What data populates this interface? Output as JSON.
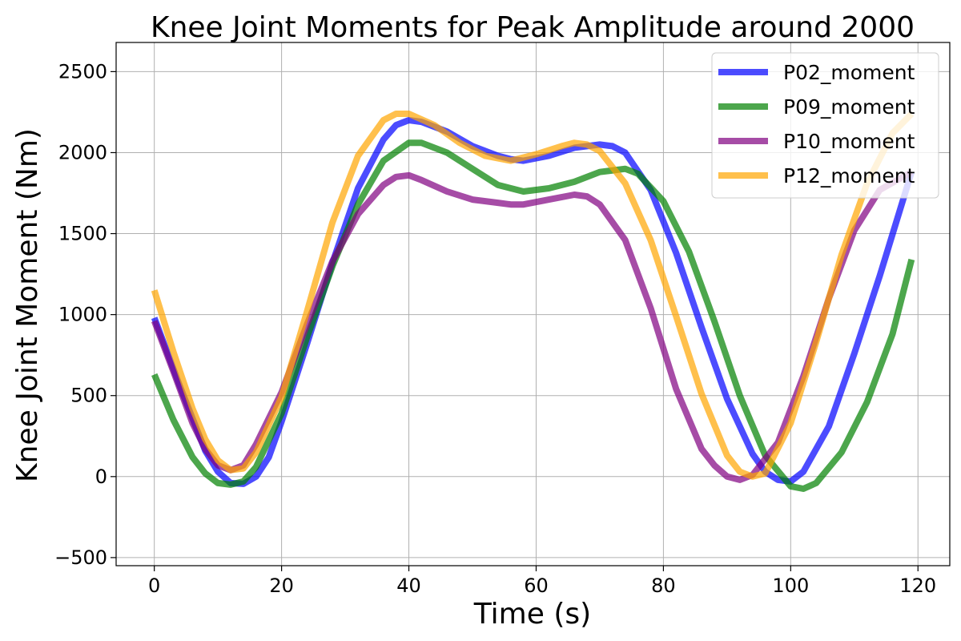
{
  "chart_data": {
    "type": "line",
    "title": "Knee Joint Moments for Peak Amplitude around 2000",
    "xlabel": "Time (s)",
    "ylabel": "Knee Joint Moment (Nm)",
    "xlim": [
      -6,
      125
    ],
    "ylim": [
      -550,
      2680
    ],
    "xticks": [
      0,
      20,
      40,
      60,
      80,
      100,
      120
    ],
    "yticks": [
      -500,
      0,
      500,
      1000,
      1500,
      2000,
      2500
    ],
    "ytick_labels": [
      "−500",
      "0",
      "500",
      "1000",
      "1500",
      "2000",
      "2500"
    ],
    "grid": true,
    "legend_position": "top-right",
    "series": [
      {
        "name": "P02_moment",
        "color": "#0000ff",
        "x": [
          0,
          4,
          8,
          10,
          12,
          14,
          16,
          18,
          20,
          24,
          28,
          32,
          36,
          38,
          40,
          42,
          46,
          50,
          54,
          56,
          58,
          62,
          66,
          70,
          72,
          74,
          78,
          82,
          86,
          90,
          94,
          96,
          98,
          100,
          102,
          106,
          110,
          114,
          119
        ],
        "values": [
          980,
          560,
          160,
          30,
          -40,
          -45,
          0,
          120,
          340,
          820,
          1320,
          1780,
          2080,
          2170,
          2200,
          2190,
          2130,
          2040,
          1980,
          1960,
          1950,
          1980,
          2030,
          2050,
          2040,
          2000,
          1770,
          1380,
          920,
          480,
          140,
          30,
          -20,
          -30,
          30,
          310,
          760,
          1240,
          1880
        ]
      },
      {
        "name": "P09_moment",
        "color": "#008000",
        "x": [
          0,
          3,
          6,
          8,
          10,
          12,
          14,
          16,
          20,
          24,
          28,
          32,
          36,
          40,
          42,
          46,
          50,
          54,
          58,
          60,
          62,
          66,
          70,
          74,
          76,
          80,
          84,
          88,
          92,
          96,
          100,
          102,
          104,
          108,
          112,
          116,
          119
        ],
        "values": [
          630,
          350,
          120,
          20,
          -40,
          -50,
          -30,
          60,
          390,
          860,
          1300,
          1680,
          1950,
          2060,
          2060,
          2000,
          1900,
          1800,
          1760,
          1770,
          1780,
          1820,
          1880,
          1900,
          1870,
          1700,
          1390,
          960,
          500,
          130,
          -60,
          -75,
          -40,
          150,
          460,
          880,
          1340
        ]
      },
      {
        "name": "P10_moment",
        "color": "#800080",
        "x": [
          0,
          3,
          6,
          8,
          10,
          12,
          14,
          16,
          20,
          24,
          28,
          32,
          36,
          38,
          40,
          42,
          46,
          50,
          54,
          56,
          58,
          62,
          66,
          68,
          70,
          74,
          78,
          82,
          86,
          88,
          90,
          92,
          94,
          98,
          102,
          106,
          110,
          114,
          119
        ],
        "values": [
          960,
          650,
          330,
          170,
          70,
          40,
          70,
          200,
          520,
          940,
          1330,
          1620,
          1800,
          1850,
          1860,
          1830,
          1760,
          1710,
          1690,
          1680,
          1680,
          1710,
          1740,
          1730,
          1680,
          1460,
          1040,
          540,
          170,
          70,
          0,
          -20,
          10,
          210,
          620,
          1100,
          1520,
          1770,
          1880
        ]
      },
      {
        "name": "P12_moment",
        "color": "#ffa500",
        "x": [
          0,
          3,
          6,
          8,
          10,
          12,
          14,
          16,
          20,
          24,
          28,
          32,
          36,
          38,
          40,
          44,
          48,
          52,
          56,
          60,
          64,
          66,
          68,
          70,
          74,
          78,
          82,
          86,
          90,
          92,
          94,
          96,
          100,
          104,
          108,
          112,
          116,
          119
        ],
        "values": [
          1150,
          770,
          420,
          230,
          100,
          40,
          50,
          150,
          490,
          1020,
          1570,
          1980,
          2200,
          2240,
          2240,
          2170,
          2060,
          1980,
          1950,
          1990,
          2040,
          2060,
          2050,
          2010,
          1810,
          1460,
          990,
          510,
          130,
          30,
          0,
          20,
          330,
          830,
          1370,
          1810,
          2120,
          2240
        ]
      }
    ]
  }
}
